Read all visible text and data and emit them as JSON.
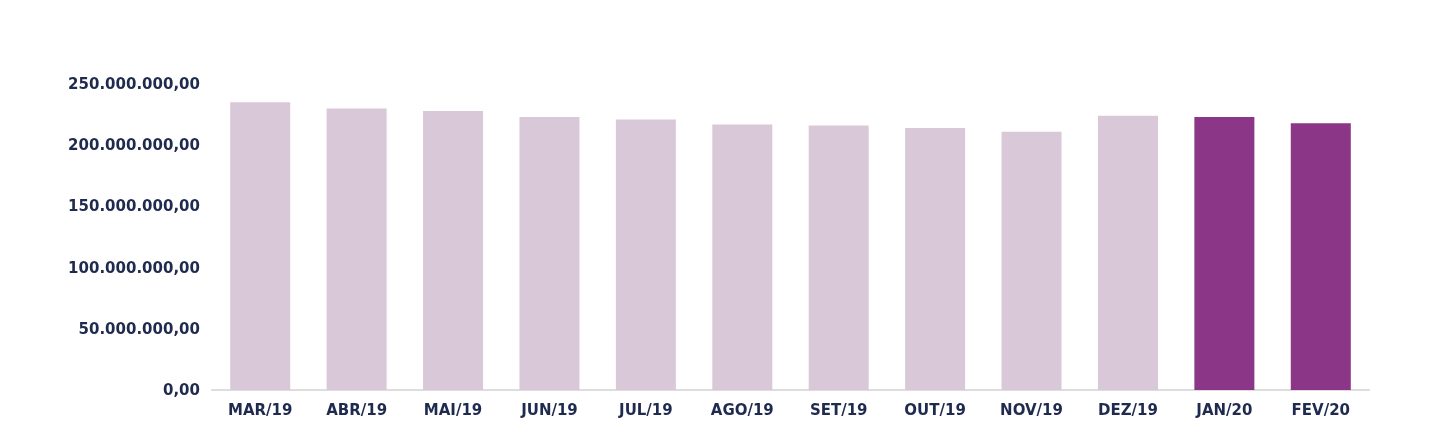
{
  "chart_data": {
    "type": "bar",
    "categories": [
      "MAR/19",
      "ABR/19",
      "MAI/19",
      "JUN/19",
      "JUL/19",
      "AGO/19",
      "SET/19",
      "OUT/19",
      "NOV/19",
      "DEZ/19",
      "JAN/20",
      "FEV/20"
    ],
    "values": [
      235000000,
      230000000,
      228000000,
      223000000,
      221000000,
      217000000,
      216000000,
      214000000,
      211000000,
      224000000,
      223000000,
      218000000
    ],
    "colors": [
      "#d9c8d8",
      "#d9c8d8",
      "#d9c8d8",
      "#d9c8d8",
      "#d9c8d8",
      "#d9c8d8",
      "#d9c8d8",
      "#d9c8d8",
      "#d9c8d8",
      "#d9c8d8",
      "#8b3686",
      "#8b3686"
    ],
    "ylim": [
      0,
      250000000
    ],
    "yticks": [
      {
        "value": 0,
        "label": "0,00"
      },
      {
        "value": 50000000,
        "label": "50.000.000,00"
      },
      {
        "value": 100000000,
        "label": "100.000.000,00"
      },
      {
        "value": 150000000,
        "label": "150.000.000,00"
      },
      {
        "value": 200000000,
        "label": "200.000.000,00"
      },
      {
        "value": 250000000,
        "label": "250.000.000,00"
      }
    ],
    "grid": false
  }
}
